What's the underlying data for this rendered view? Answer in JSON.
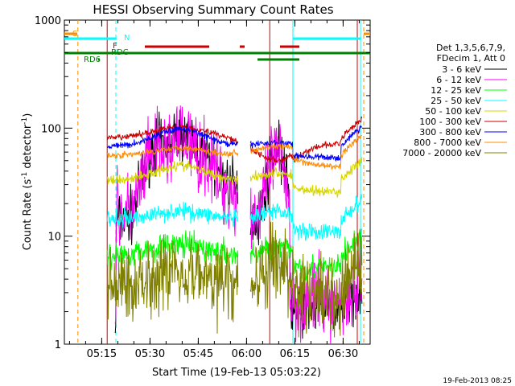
{
  "chart_data": {
    "type": "line",
    "title": "HESSI Observing Summary Count Rates",
    "xlabel": "Start Time (19-Feb-13 05:03:22)",
    "ylabel_main": "Count Rate (s",
    "ylabel_sup1": "-1",
    "ylabel_mid": " detector",
    "ylabel_sup2": "-1",
    "ylabel_end": ")",
    "y_scale": "log",
    "ylim": [
      1,
      1000
    ],
    "xlim_minutes": [
      0,
      95
    ],
    "x_ticks": [
      {
        "label": "05:15",
        "minute": 11.6
      },
      {
        "label": "05:30",
        "minute": 26.6
      },
      {
        "label": "05:45",
        "minute": 41.6
      },
      {
        "label": "06:00",
        "minute": 56.6
      },
      {
        "label": "06:15",
        "minute": 71.6
      },
      {
        "label": "06:30",
        "minute": 86.6
      }
    ],
    "y_ticks": [
      {
        "label": "1",
        "value": 1
      },
      {
        "label": "10",
        "value": 10
      },
      {
        "label": "100",
        "value": 100
      },
      {
        "label": "1000",
        "value": 1000
      }
    ],
    "legend_header": [
      "Det 1,3,5,6,7,9,",
      "FDecim 1, Att 0"
    ],
    "legend_placement": "right-outside",
    "series": [
      {
        "name": "3 - 6 keV",
        "color": "#000000"
      },
      {
        "name": "6 - 12 keV",
        "color": "#ff00ff"
      },
      {
        "name": "12 - 25 keV",
        "color": "#00ff00"
      },
      {
        "name": "25 - 50 keV",
        "color": "#00ffff"
      },
      {
        "name": "50 - 100 keV",
        "color": "#d4d400"
      },
      {
        "name": "100 - 300 keV",
        "color": "#cc0000"
      },
      {
        "name": "300 - 800 keV",
        "color": "#0000ff"
      },
      {
        "name": "800 - 7000 keV",
        "color": "#ff8c00"
      },
      {
        "name": "7000 - 20000 keV",
        "color": "#808000"
      }
    ],
    "flags": [
      {
        "label": "S",
        "color": "#ff8c00"
      },
      {
        "label": "N",
        "color": "#00ffff"
      },
      {
        "label": "F",
        "color": "#cc0000"
      },
      {
        "label": "RDC",
        "color": "#008000"
      },
      {
        "label": "RD6",
        "color": "#008000"
      }
    ],
    "timestamp": "19-Feb-2013 08:25"
  }
}
